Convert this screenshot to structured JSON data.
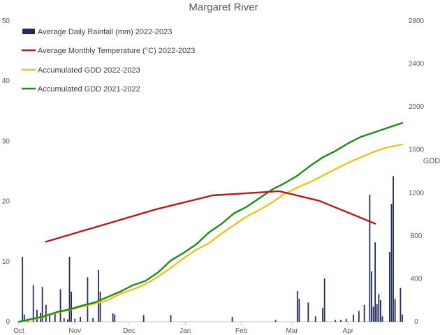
{
  "chart_data": {
    "type": "bar+line",
    "title": "Margaret River",
    "ylabel_left": "",
    "ylabel_right": "GDD",
    "ylim_left": [
      0,
      50
    ],
    "ylim_right": [
      0,
      2800
    ],
    "yticks_left": [
      "0",
      "10",
      "20",
      "30",
      "40",
      "50"
    ],
    "yticks_right": [
      "0",
      "400",
      "800",
      "1200",
      "1600",
      "2000",
      "2400",
      "2800"
    ],
    "x_months": [
      "Oct",
      "Nov",
      "Dec",
      "Jan",
      "Feb",
      "Mar",
      "Apr"
    ],
    "x_month_day_offsets": [
      0,
      31,
      61,
      92,
      123,
      151,
      182
    ],
    "x_domain_days": [
      0,
      212
    ],
    "legend": {
      "placement": "top-left",
      "entries": [
        {
          "label": "Average Daily Rainfall (mm) 2022-2023",
          "color": "#1f2d5c",
          "kind": "bar"
        },
        {
          "label": "Average Monthly Temperature (°C) 2022-2023",
          "color": "#b01c1c",
          "kind": "line"
        },
        {
          "label": "Accumulated GDD 2022-2023",
          "color": "#f0c020",
          "kind": "line"
        },
        {
          "label": "Accumulated GDD 2021-2022",
          "color": "#1e8a1e",
          "kind": "line"
        }
      ]
    },
    "series": [
      {
        "name": "Average Daily Rainfall (mm) 2022-2023",
        "axis": "left",
        "type": "bar",
        "color": "#1f2d5c",
        "points": [
          [
            2,
            10.8
          ],
          [
            3,
            1.2
          ],
          [
            5,
            0.5
          ],
          [
            8,
            6.1
          ],
          [
            10,
            2
          ],
          [
            12,
            1.5
          ],
          [
            13,
            5.8
          ],
          [
            15,
            2.8
          ],
          [
            17,
            1
          ],
          [
            20,
            1.6
          ],
          [
            23,
            5.4
          ],
          [
            25,
            0.6
          ],
          [
            27,
            0.4
          ],
          [
            28,
            10.8
          ],
          [
            29,
            5
          ],
          [
            31,
            0.5
          ],
          [
            34,
            0.8
          ],
          [
            38,
            7.4
          ],
          [
            41,
            0.6
          ],
          [
            44,
            8.6
          ],
          [
            45,
            5
          ],
          [
            52,
            1.4
          ],
          [
            53,
            1.2
          ],
          [
            69,
            1.1
          ],
          [
            84,
            1.1
          ],
          [
            118,
            0.8
          ],
          [
            142,
            0.3
          ],
          [
            154,
            5.1
          ],
          [
            155,
            3.8
          ],
          [
            160,
            3.2
          ],
          [
            164,
            0.9
          ],
          [
            168,
            2.3
          ],
          [
            169,
            7.2
          ],
          [
            175,
            0.3
          ],
          [
            178,
            0.3
          ],
          [
            181,
            0.5
          ],
          [
            185,
            1.2
          ],
          [
            188,
            1.8
          ],
          [
            191,
            2.8
          ],
          [
            194,
            21.1
          ],
          [
            195,
            8.4
          ],
          [
            196,
            2.5
          ],
          [
            197,
            13.2
          ],
          [
            198,
            2.9
          ],
          [
            199,
            4.6
          ],
          [
            200,
            3.6
          ],
          [
            201,
            0.9
          ],
          [
            205,
            11.6
          ],
          [
            206,
            19.6
          ],
          [
            207,
            24.2
          ],
          [
            208,
            3.8
          ],
          [
            211,
            5.6
          ],
          [
            212,
            1.2
          ]
        ]
      },
      {
        "name": "Average Monthly Temperature (°C) 2022-2023",
        "axis": "left",
        "type": "line",
        "color": "#b01c1c",
        "x": [
          15,
          76,
          107,
          144,
          166,
          197
        ],
        "values": [
          13.3,
          18.7,
          21,
          21.7,
          20.1,
          16.3
        ]
      },
      {
        "name": "Accumulated GDD 2022-2023",
        "axis": "right",
        "type": "line",
        "color": "#f0c020",
        "x": [
          0,
          7,
          14,
          21,
          28,
          35,
          42,
          49,
          56,
          63,
          70,
          77,
          84,
          91,
          98,
          105,
          112,
          119,
          126,
          133,
          140,
          147,
          154,
          161,
          168,
          175,
          182,
          189,
          196,
          203,
          212
        ],
        "values": [
          0,
          20,
          45,
          85,
          110,
          140,
          170,
          200,
          260,
          300,
          350,
          420,
          500,
          590,
          670,
          730,
          820,
          900,
          980,
          1040,
          1110,
          1190,
          1250,
          1300,
          1360,
          1420,
          1480,
          1530,
          1580,
          1620,
          1650
        ]
      },
      {
        "name": "Accumulated GDD 2021-2022",
        "axis": "right",
        "type": "line",
        "color": "#1e8a1e",
        "x": [
          0,
          7,
          14,
          21,
          28,
          35,
          42,
          49,
          56,
          63,
          70,
          77,
          84,
          91,
          98,
          105,
          112,
          119,
          126,
          133,
          140,
          147,
          154,
          161,
          168,
          175,
          182,
          189,
          196,
          203,
          212
        ],
        "values": [
          0,
          25,
          50,
          90,
          115,
          150,
          180,
          230,
          280,
          340,
          380,
          460,
          570,
          640,
          720,
          830,
          910,
          1010,
          1070,
          1150,
          1230,
          1290,
          1360,
          1450,
          1530,
          1590,
          1660,
          1720,
          1760,
          1800,
          1850
        ]
      }
    ]
  }
}
